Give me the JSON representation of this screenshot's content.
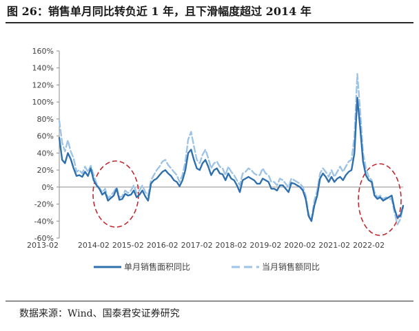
{
  "header": {
    "title": "图 26：销售单月同比转负近 1 年，且下滑幅度超过 2014 年"
  },
  "footer": {
    "source": "数据来源：Wind、国泰君安证券研究"
  },
  "colors": {
    "area_series": "#2e6fad",
    "amount_series": "#9dc3e6",
    "annotation": "#c0282d"
  },
  "chart_data": {
    "type": "line",
    "title": "",
    "xlabel": "",
    "ylabel": "",
    "ylim": [
      -60,
      160
    ],
    "y_ticks": [
      "160%",
      "140%",
      "120%",
      "100%",
      "80%",
      "60%",
      "40%",
      "20%",
      "0%",
      "-20%",
      "-40%",
      "-60%"
    ],
    "x_ticks": [
      "2013-02",
      "2014-02",
      "2015-02",
      "2016-02",
      "2017-02",
      "2018-02",
      "2019-02",
      "2020-02",
      "2021-02",
      "2022-02"
    ],
    "legend": {
      "position": "bottom"
    },
    "grid": false,
    "annotations": [
      {
        "type": "ellipse",
        "style": "dashed",
        "label": "",
        "period": "2014-2015"
      },
      {
        "type": "ellipse",
        "style": "dashed",
        "label": "",
        "period": "2021-2022"
      }
    ],
    "series": [
      {
        "name": "单月销售面积同比",
        "style": "solid",
        "points": [
          [
            "2013-02",
            58
          ],
          [
            "2013-03",
            32
          ],
          [
            "2013-04",
            28
          ],
          [
            "2013-05",
            40
          ],
          [
            "2013-06",
            33
          ],
          [
            "2013-07",
            22
          ],
          [
            "2013-08",
            13
          ],
          [
            "2013-09",
            14
          ],
          [
            "2013-10",
            12
          ],
          [
            "2013-11",
            18
          ],
          [
            "2013-12",
            13
          ],
          [
            "2014-01",
            22
          ],
          [
            "2014-02",
            8
          ],
          [
            "2014-03",
            2
          ],
          [
            "2014-04",
            -2
          ],
          [
            "2014-05",
            -9
          ],
          [
            "2014-06",
            -6
          ],
          [
            "2014-07",
            -16
          ],
          [
            "2014-08",
            -13
          ],
          [
            "2014-09",
            -10
          ],
          [
            "2014-10",
            -2
          ],
          [
            "2014-11",
            -15
          ],
          [
            "2014-12",
            -14
          ],
          [
            "2015-01",
            -8
          ],
          [
            "2015-02",
            -10
          ],
          [
            "2015-03",
            -9
          ],
          [
            "2015-04",
            -4
          ],
          [
            "2015-05",
            -12
          ],
          [
            "2015-06",
            -9
          ],
          [
            "2015-07",
            -4
          ],
          [
            "2015-08",
            -11
          ],
          [
            "2015-09",
            -16
          ],
          [
            "2015-10",
            4
          ],
          [
            "2015-11",
            8
          ],
          [
            "2015-12",
            10
          ],
          [
            "2016-01",
            14
          ],
          [
            "2016-02",
            18
          ],
          [
            "2016-03",
            20
          ],
          [
            "2016-04",
            16
          ],
          [
            "2016-05",
            13
          ],
          [
            "2016-06",
            8
          ],
          [
            "2016-07",
            6
          ],
          [
            "2016-08",
            1
          ],
          [
            "2016-09",
            8
          ],
          [
            "2016-10",
            20
          ],
          [
            "2016-11",
            40
          ],
          [
            "2016-12",
            44
          ],
          [
            "2017-01",
            32
          ],
          [
            "2017-02",
            22
          ],
          [
            "2017-03",
            20
          ],
          [
            "2017-04",
            28
          ],
          [
            "2017-05",
            32
          ],
          [
            "2017-06",
            24
          ],
          [
            "2017-07",
            14
          ],
          [
            "2017-08",
            20
          ],
          [
            "2017-09",
            22
          ],
          [
            "2017-10",
            16
          ],
          [
            "2017-11",
            15
          ],
          [
            "2017-12",
            8
          ],
          [
            "2018-01",
            16
          ],
          [
            "2018-02",
            10
          ],
          [
            "2018-03",
            8
          ],
          [
            "2018-04",
            2
          ],
          [
            "2018-05",
            -6
          ],
          [
            "2018-06",
            8
          ],
          [
            "2018-07",
            10
          ],
          [
            "2018-08",
            12
          ],
          [
            "2018-09",
            10
          ],
          [
            "2018-10",
            8
          ],
          [
            "2018-11",
            4
          ],
          [
            "2018-12",
            4
          ],
          [
            "2019-01",
            10
          ],
          [
            "2019-02",
            8
          ],
          [
            "2019-03",
            6
          ],
          [
            "2019-04",
            -2
          ],
          [
            "2019-05",
            -2
          ],
          [
            "2019-06",
            -4
          ],
          [
            "2019-07",
            2
          ],
          [
            "2019-08",
            2
          ],
          [
            "2019-09",
            -2
          ],
          [
            "2019-10",
            -6
          ],
          [
            "2019-11",
            5
          ],
          [
            "2019-12",
            4
          ],
          [
            "2020-01",
            2
          ],
          [
            "2020-02",
            0
          ],
          [
            "2020-03",
            -4
          ],
          [
            "2020-04",
            -14
          ],
          [
            "2020-05",
            -34
          ],
          [
            "2020-06",
            -40
          ],
          [
            "2020-07",
            -22
          ],
          [
            "2020-08",
            -10
          ],
          [
            "2020-09",
            10
          ],
          [
            "2020-10",
            16
          ],
          [
            "2020-11",
            12
          ],
          [
            "2020-12",
            6
          ],
          [
            "2021-01",
            12
          ],
          [
            "2021-02",
            6
          ],
          [
            "2021-03",
            10
          ],
          [
            "2021-04",
            12
          ],
          [
            "2021-05",
            8
          ],
          [
            "2021-06",
            14
          ],
          [
            "2021-07",
            18
          ],
          [
            "2021-08",
            20
          ],
          [
            "2021-09",
            40
          ],
          [
            "2021-10",
            105
          ],
          [
            "2021-11",
            70
          ],
          [
            "2021-12",
            30
          ],
          [
            "2022-01",
            14
          ],
          [
            "2022-02",
            8
          ],
          [
            "2022-03",
            6
          ],
          [
            "2022-04",
            -10
          ],
          [
            "2022-05",
            -14
          ],
          [
            "2022-06",
            -12
          ],
          [
            "2022-07",
            -16
          ],
          [
            "2022-08",
            -14
          ],
          [
            "2022-09",
            -12
          ],
          [
            "2022-10",
            -10
          ],
          [
            "2022-11",
            -26
          ],
          [
            "2022-12",
            -36
          ],
          [
            "2023-01",
            -34
          ],
          [
            "2023-02",
            -22
          ]
        ]
      },
      {
        "name": "当月销售额同比",
        "style": "dashed",
        "points": [
          [
            "2013-02",
            78
          ],
          [
            "2013-03",
            52
          ],
          [
            "2013-04",
            42
          ],
          [
            "2013-05",
            55
          ],
          [
            "2013-06",
            42
          ],
          [
            "2013-07",
            34
          ],
          [
            "2013-08",
            18
          ],
          [
            "2013-09",
            20
          ],
          [
            "2013-10",
            16
          ],
          [
            "2013-11",
            24
          ],
          [
            "2013-12",
            18
          ],
          [
            "2014-01",
            25
          ],
          [
            "2014-02",
            14
          ],
          [
            "2014-03",
            4
          ],
          [
            "2014-04",
            -1
          ],
          [
            "2014-05",
            -6
          ],
          [
            "2014-06",
            -2
          ],
          [
            "2014-07",
            -13
          ],
          [
            "2014-08",
            -10
          ],
          [
            "2014-09",
            -6
          ],
          [
            "2014-10",
            0
          ],
          [
            "2014-11",
            -12
          ],
          [
            "2014-12",
            -11
          ],
          [
            "2015-01",
            -4
          ],
          [
            "2015-02",
            -7
          ],
          [
            "2015-03",
            -4
          ],
          [
            "2015-04",
            2
          ],
          [
            "2015-05",
            -7
          ],
          [
            "2015-06",
            -4
          ],
          [
            "2015-07",
            2
          ],
          [
            "2015-08",
            -6
          ],
          [
            "2015-09",
            -10
          ],
          [
            "2015-10",
            8
          ],
          [
            "2015-11",
            14
          ],
          [
            "2015-12",
            20
          ],
          [
            "2016-01",
            24
          ],
          [
            "2016-02",
            30
          ],
          [
            "2016-03",
            32
          ],
          [
            "2016-04",
            26
          ],
          [
            "2016-05",
            22
          ],
          [
            "2016-06",
            18
          ],
          [
            "2016-07",
            14
          ],
          [
            "2016-08",
            6
          ],
          [
            "2016-09",
            14
          ],
          [
            "2016-10",
            30
          ],
          [
            "2016-11",
            56
          ],
          [
            "2016-12",
            65
          ],
          [
            "2017-01",
            48
          ],
          [
            "2017-02",
            32
          ],
          [
            "2017-03",
            28
          ],
          [
            "2017-04",
            38
          ],
          [
            "2017-05",
            44
          ],
          [
            "2017-06",
            34
          ],
          [
            "2017-07",
            22
          ],
          [
            "2017-08",
            28
          ],
          [
            "2017-09",
            30
          ],
          [
            "2017-10",
            24
          ],
          [
            "2017-11",
            22
          ],
          [
            "2017-12",
            14
          ],
          [
            "2018-01",
            24
          ],
          [
            "2018-02",
            18
          ],
          [
            "2018-03",
            14
          ],
          [
            "2018-04",
            8
          ],
          [
            "2018-05",
            2
          ],
          [
            "2018-06",
            16
          ],
          [
            "2018-07",
            18
          ],
          [
            "2018-08",
            22
          ],
          [
            "2018-09",
            20
          ],
          [
            "2018-10",
            16
          ],
          [
            "2018-11",
            14
          ],
          [
            "2018-12",
            14
          ],
          [
            "2019-01",
            22
          ],
          [
            "2019-02",
            16
          ],
          [
            "2019-03",
            14
          ],
          [
            "2019-04",
            6
          ],
          [
            "2019-05",
            6
          ],
          [
            "2019-06",
            2
          ],
          [
            "2019-07",
            10
          ],
          [
            "2019-08",
            8
          ],
          [
            "2019-09",
            4
          ],
          [
            "2019-10",
            0
          ],
          [
            "2019-11",
            10
          ],
          [
            "2019-12",
            8
          ],
          [
            "2020-01",
            6
          ],
          [
            "2020-02",
            4
          ],
          [
            "2020-03",
            0
          ],
          [
            "2020-04",
            -10
          ],
          [
            "2020-05",
            -32
          ],
          [
            "2020-06",
            -38
          ],
          [
            "2020-07",
            -16
          ],
          [
            "2020-08",
            -4
          ],
          [
            "2020-09",
            16
          ],
          [
            "2020-10",
            22
          ],
          [
            "2020-11",
            18
          ],
          [
            "2020-12",
            12
          ],
          [
            "2021-01",
            20
          ],
          [
            "2021-02",
            12
          ],
          [
            "2021-03",
            18
          ],
          [
            "2021-04",
            24
          ],
          [
            "2021-05",
            18
          ],
          [
            "2021-06",
            24
          ],
          [
            "2021-07",
            30
          ],
          [
            "2021-08",
            32
          ],
          [
            "2021-09",
            60
          ],
          [
            "2021-10",
            133
          ],
          [
            "2021-11",
            90
          ],
          [
            "2021-12",
            40
          ],
          [
            "2022-01",
            22
          ],
          [
            "2022-02",
            12
          ],
          [
            "2022-03",
            8
          ],
          [
            "2022-04",
            -6
          ],
          [
            "2022-05",
            -12
          ],
          [
            "2022-06",
            -10
          ],
          [
            "2022-07",
            -14
          ],
          [
            "2022-08",
            -12
          ],
          [
            "2022-09",
            -14
          ],
          [
            "2022-10",
            -14
          ],
          [
            "2022-11",
            -30
          ],
          [
            "2022-12",
            -44
          ],
          [
            "2023-01",
            -38
          ],
          [
            "2023-02",
            -24
          ]
        ]
      }
    ]
  }
}
